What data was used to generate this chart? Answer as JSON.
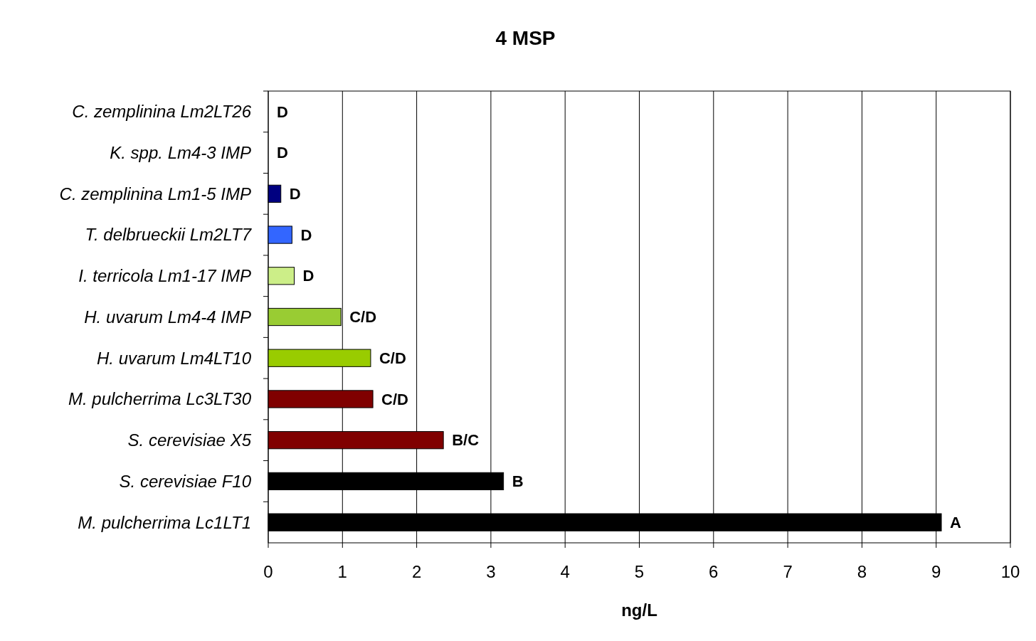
{
  "chart_data": {
    "type": "bar",
    "title": "4 MSP",
    "xlabel": "ng/L",
    "orientation": "horizontal",
    "categories": [
      "C. zemplinina Lm2LT26",
      "K. spp. Lm4-3 IMP",
      "C. zemplinina Lm1-5 IMP",
      "T. delbrueckii Lm2LT7",
      "I. terricola Lm1-17 IMP",
      "H. uvarum Lm4-4 IMP",
      "H. uvarum Lm4LT10",
      "M. pulcherrima Lc3LT30",
      "S. cerevisiae X5",
      "S. cerevisiae F10",
      "M. pulcherrima Lc1LT1"
    ],
    "values": [
      0,
      0,
      0.17,
      0.32,
      0.35,
      0.98,
      1.38,
      1.41,
      2.36,
      3.17,
      9.07
    ],
    "colors": [
      "#000080",
      "#000080",
      "#000080",
      "#3366ff",
      "#ccee88",
      "#99cc33",
      "#99cc00",
      "#800000",
      "#800000",
      "#000000",
      "#000000"
    ],
    "value_labels": [
      "D",
      "D",
      "D",
      "D",
      "D",
      "C/D",
      "C/D",
      "C/D",
      "B/C",
      "B",
      "A"
    ],
    "xlim": [
      0,
      10
    ],
    "xticks": [
      0,
      1,
      2,
      3,
      4,
      5,
      6,
      7,
      8,
      9,
      10
    ],
    "grid": "x"
  }
}
